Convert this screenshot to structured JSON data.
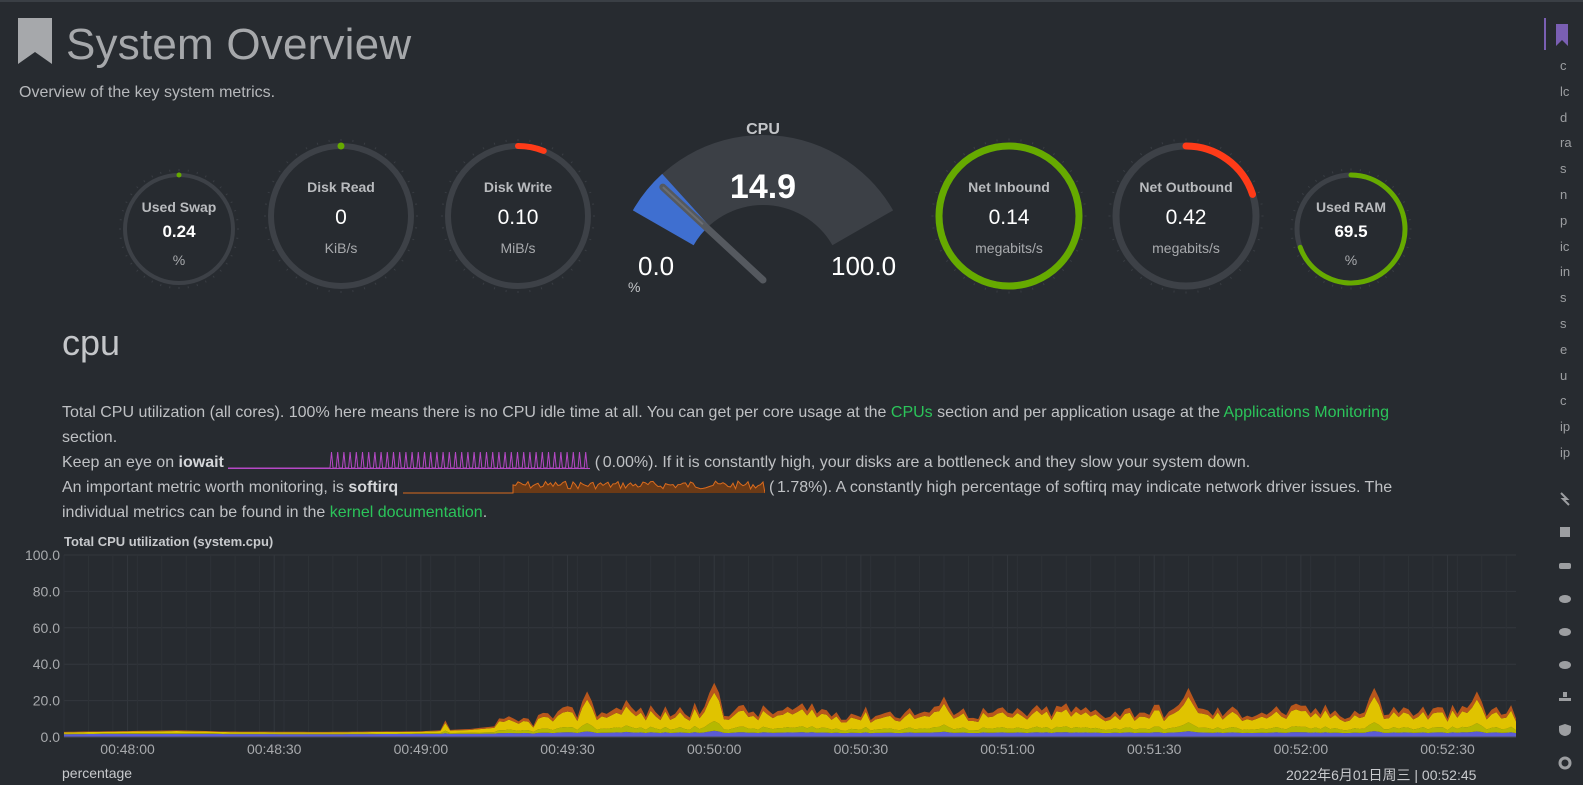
{
  "header": {
    "title": "System Overview",
    "subtitle": "Overview of the key system metrics.",
    "icon": "bookmark-icon"
  },
  "gauges": {
    "used_swap": {
      "title": "Used Swap",
      "value": "0.24",
      "unit": "%",
      "level": 0.0,
      "color": "#66aa00"
    },
    "disk_read": {
      "title": "Disk Read",
      "value": "0",
      "unit": "KiB/s",
      "level": 0.0,
      "color": "#66aa00"
    },
    "disk_write": {
      "title": "Disk Write",
      "value": "0.10",
      "unit": "MiB/s",
      "level": 0.06,
      "color": "#ff3b18"
    },
    "net_inbound": {
      "title": "Net Inbound",
      "value": "0.14",
      "unit": "megabits/s",
      "level": 1.0,
      "color": "#66aa00"
    },
    "net_outbound": {
      "title": "Net Outbound",
      "value": "0.42",
      "unit": "megabits/s",
      "level": 0.2,
      "color": "#ff3b18"
    },
    "used_ram": {
      "title": "Used RAM",
      "value": "69.5",
      "unit": "%",
      "level": 0.695,
      "color": "#66aa00"
    }
  },
  "cpu_gauge": {
    "title": "CPU",
    "value": "14.9",
    "min": "0.0",
    "max": "100.0",
    "unit": "%",
    "level": 0.149,
    "color": "#3f6fd0"
  },
  "section": {
    "title": "cpu",
    "line1_a": "Total CPU utilization (all cores). 100% here means there is no CPU idle time at all. You can get per core usage at the ",
    "cpus_link": "CPUs",
    "line1_b": " section and per application usage at the ",
    "apps_link": "Applications Monitoring",
    "line1_c": "section.",
    "line2_a": "Keep an eye on ",
    "iowait": "iowait",
    "iowait_open": "(",
    "iowait_value": "0.00%",
    "line2_b": "). If it is constantly high, your disks are a bottleneck and they slow your system down.",
    "line3_a": "An important metric worth monitoring, is ",
    "softirq": "softirq",
    "softirq_open": "(",
    "softirq_value": "1.78%",
    "line3_b": "). A constantly high percentage of softirq may indicate network driver issues. The",
    "line4_a": "individual metrics can be found in the ",
    "kernel_link": "kernel documentation",
    "line4_b": "."
  },
  "chart": {
    "title": "Total CPU utilization (system.cpu)",
    "footer_unit": "percentage",
    "footer_time": "2022年6月01日周三 | 00:52:45"
  },
  "chart_data": {
    "type": "area",
    "title": "Total CPU utilization (system.cpu)",
    "ylabel": "percentage",
    "ylim": [
      0,
      100
    ],
    "y_ticks": [
      "100.0",
      "80.0",
      "60.0",
      "40.0",
      "20.0",
      "0.0"
    ],
    "x_ticks": [
      "00:48:00",
      "00:48:30",
      "00:49:00",
      "00:49:30",
      "00:50:00",
      "00:50:30",
      "00:51:00",
      "00:51:30",
      "00:52:00",
      "00:52:30"
    ],
    "x_range": [
      "00:47:47",
      "00:52:44"
    ],
    "stacked": true,
    "series_colors": [
      "#5b5bd6",
      "#b5b800",
      "#e0c300",
      "#b8561c"
    ],
    "profile_times": [
      "00:47:47",
      "00:48:00",
      "00:48:10",
      "00:48:20",
      "00:48:40",
      "00:49:00",
      "00:49:10",
      "00:49:20",
      "00:49:25",
      "00:49:30",
      "00:49:40",
      "00:49:50",
      "00:50:00",
      "00:50:10",
      "00:50:20",
      "00:50:30",
      "00:50:40",
      "00:50:50",
      "00:51:00",
      "00:51:10",
      "00:51:20",
      "00:51:30",
      "00:51:40",
      "00:51:50",
      "00:52:00",
      "00:52:10",
      "00:52:20",
      "00:52:30",
      "00:52:44"
    ],
    "total_profile": [
      1.5,
      1.8,
      2.2,
      1.6,
      1.5,
      1.7,
      3,
      6,
      9,
      11,
      13,
      12,
      14,
      12,
      13,
      11,
      12,
      12,
      11,
      13,
      12,
      13,
      12,
      12,
      13,
      12,
      13,
      12,
      12
    ],
    "peaks": [
      {
        "t": "00:49:05",
        "v": 8
      },
      {
        "t": "00:49:34",
        "v": 25
      },
      {
        "t": "00:49:42",
        "v": 20
      },
      {
        "t": "00:50:00",
        "v": 30
      },
      {
        "t": "00:50:20",
        "v": 18
      },
      {
        "t": "00:50:47",
        "v": 22
      },
      {
        "t": "00:51:12",
        "v": 18
      },
      {
        "t": "00:51:37",
        "v": 27
      },
      {
        "t": "00:52:15",
        "v": 27
      },
      {
        "t": "00:52:36",
        "v": 25
      }
    ]
  },
  "sidebar": {
    "items": [
      "c",
      "lc",
      "d",
      "ra",
      "s",
      "n",
      "p",
      "ic",
      "in",
      "s",
      "s",
      "e",
      "u",
      "c",
      "ip",
      "ip"
    ]
  }
}
